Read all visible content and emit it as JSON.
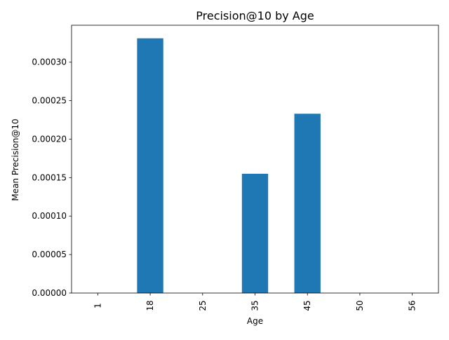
{
  "chart_data": {
    "type": "bar",
    "title": "Precision@10 by Age",
    "xlabel": "Age",
    "ylabel": "Mean Precision@10",
    "categories": [
      "1",
      "18",
      "25",
      "35",
      "45",
      "50",
      "56"
    ],
    "values": [
      0.0,
      0.000331,
      0.0,
      0.000155,
      0.000233,
      0.0,
      0.0
    ],
    "ylim": [
      0,
      0.000348
    ],
    "yticks": [
      0,
      5e-05,
      0.0001,
      0.00015,
      0.0002,
      0.00025,
      0.0003
    ],
    "ytick_labels": [
      "0.00000",
      "0.00005",
      "0.00010",
      "0.00015",
      "0.00020",
      "0.00025",
      "0.00030"
    ],
    "bar_color": "#1f77b4",
    "grid": false,
    "legend": "none"
  }
}
